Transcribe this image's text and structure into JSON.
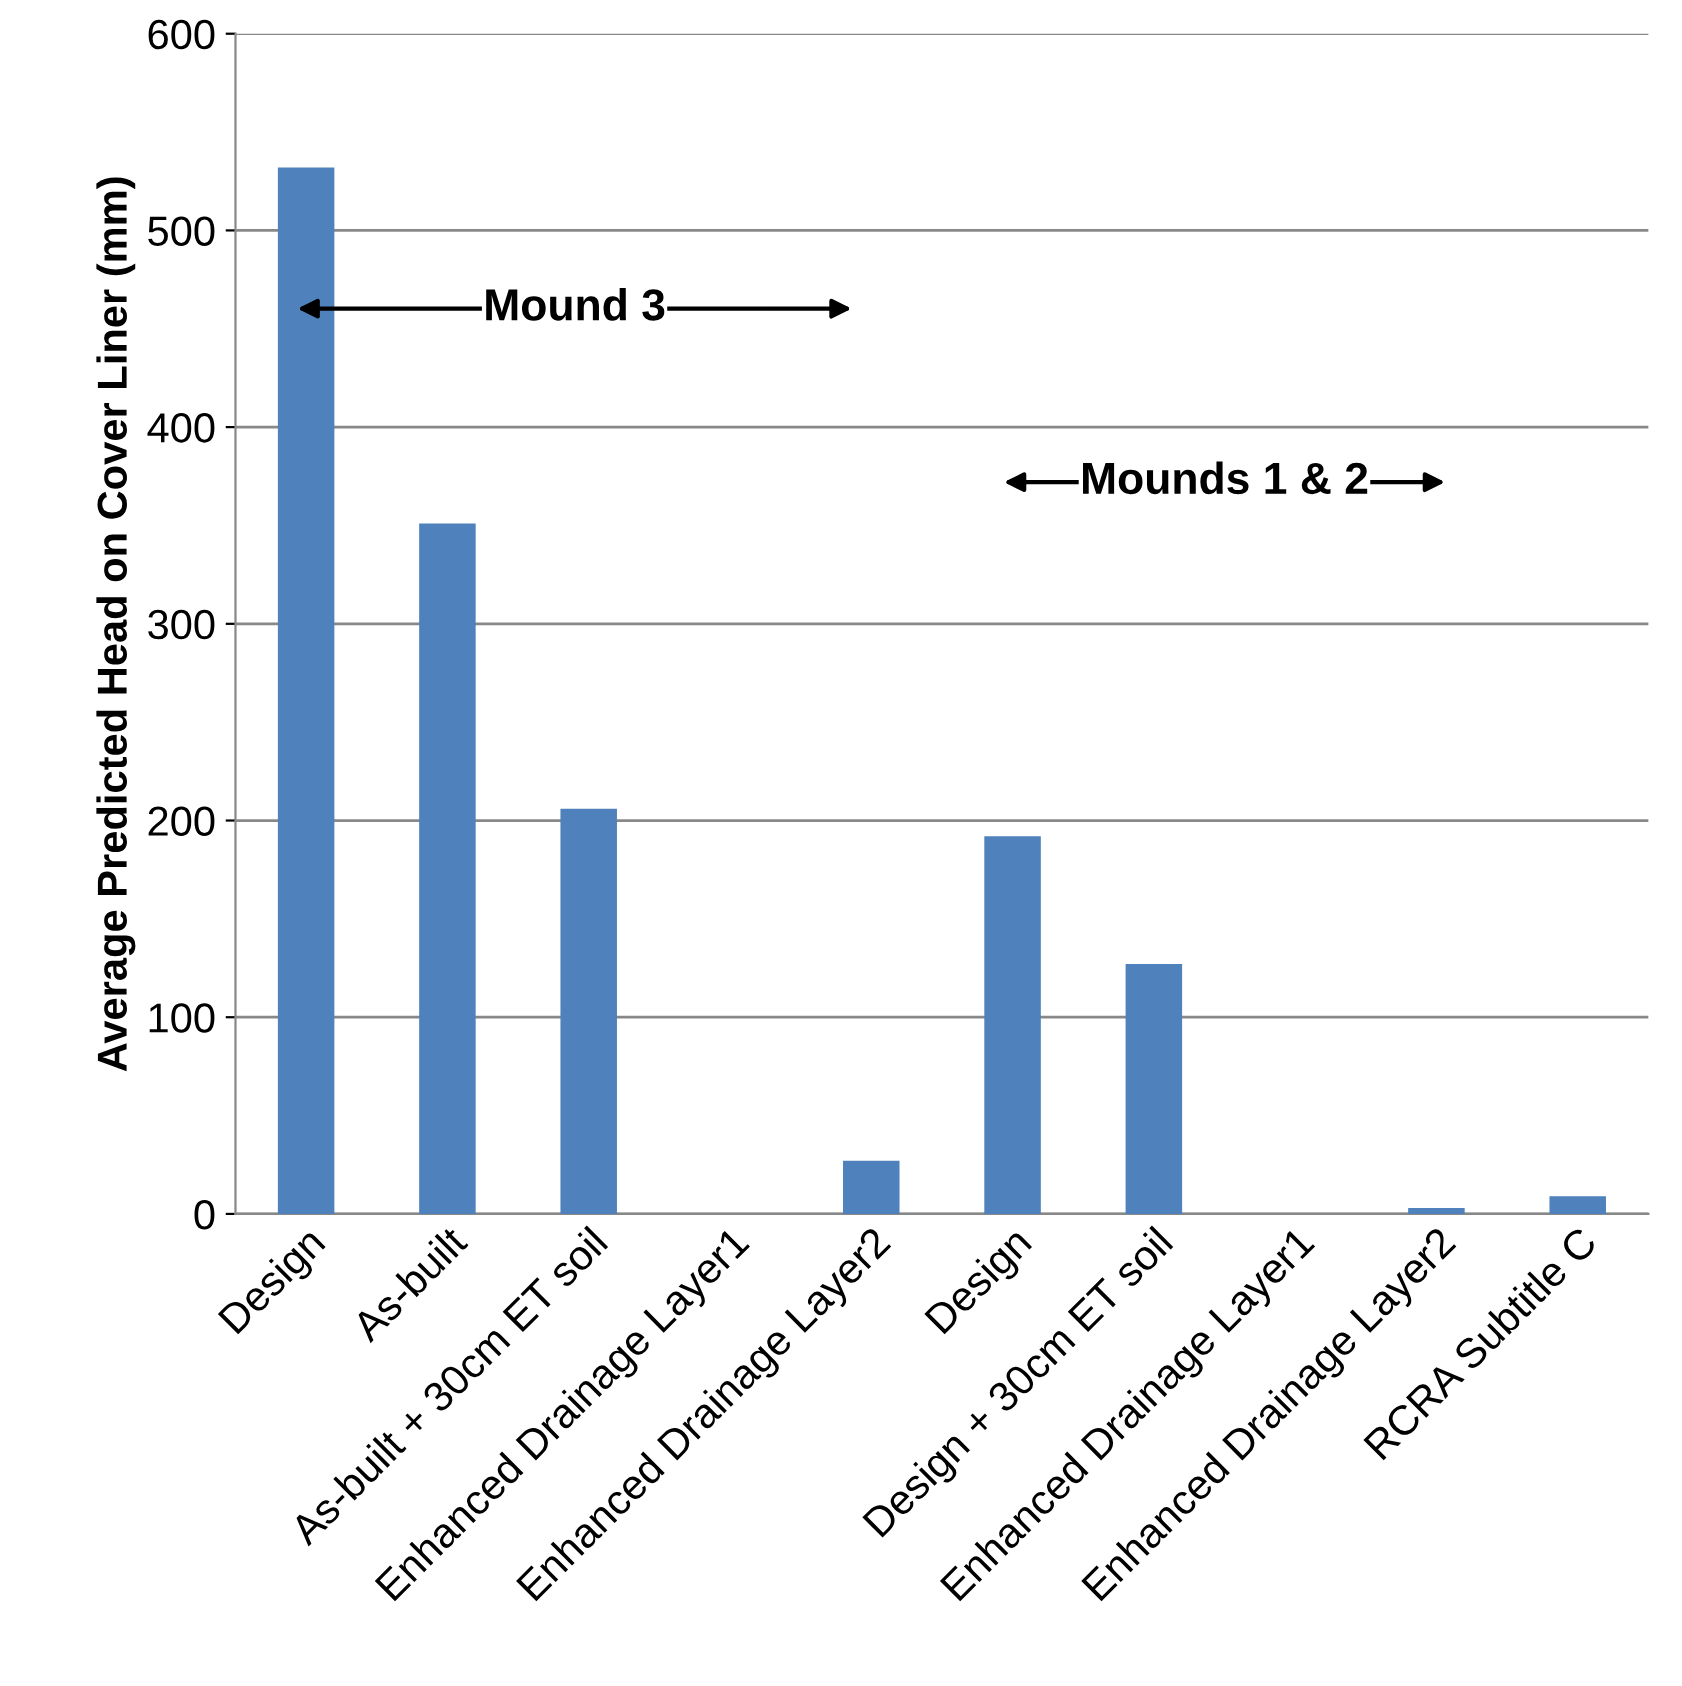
{
  "chart_data": {
    "type": "bar",
    "ylabel": "Average Predicted Head on Cover Liner (mm)",
    "categories": [
      "Design",
      "As-built",
      "As-built + 30cm ET soil",
      "Enhanced Drainage Layer1",
      "Enhanced Drainage Layer2",
      "Design",
      "Design + 30cm ET soil",
      "Enhanced Drainage Layer1",
      "Enhanced Drainage Layer2",
      "RCRA Subtitle C"
    ],
    "values": [
      532,
      351,
      206,
      0,
      27,
      192,
      127,
      0,
      3,
      9
    ],
    "color": "#4f81bd",
    "ylim": [
      0,
      600
    ],
    "yticks": [
      0,
      100,
      200,
      300,
      400,
      500,
      600
    ],
    "grid": "y",
    "legend": false,
    "annotations": [
      "Mound 3",
      "Mounds 1 & 2"
    ]
  }
}
